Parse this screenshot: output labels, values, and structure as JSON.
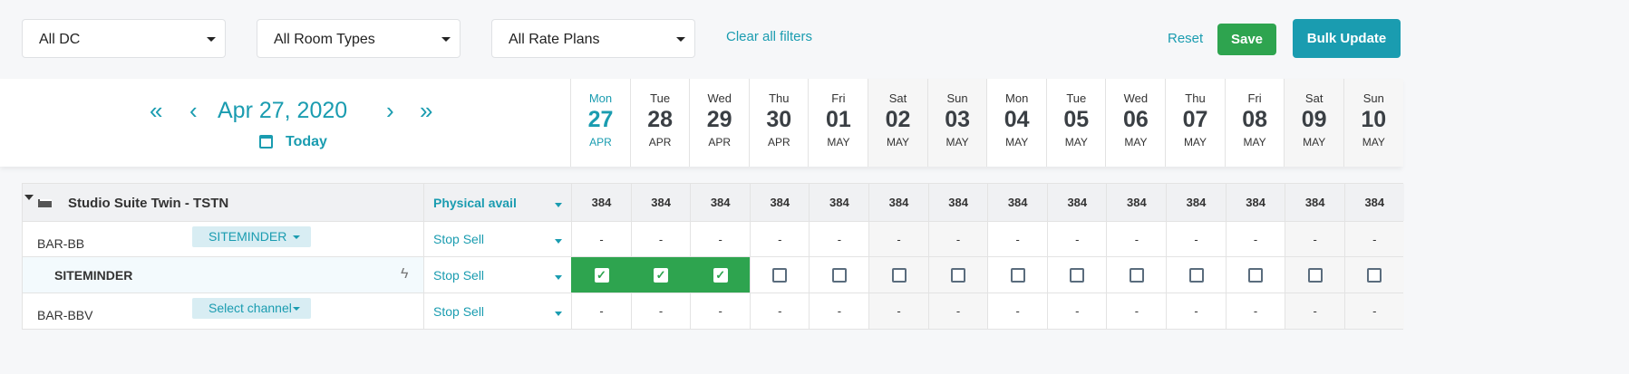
{
  "filters": {
    "dc": "All DC",
    "room_types": "All Room Types",
    "rate_plans": "All Rate Plans",
    "clear": "Clear all filters"
  },
  "actions": {
    "reset": "Reset",
    "save": "Save",
    "bulk_update": "Bulk Update"
  },
  "colors": {
    "accent": "#1a9cb0",
    "save": "#2ea44f",
    "bulk": "#1a9cb0",
    "checked": "#2ea44f"
  },
  "date_nav": {
    "date": "Apr 27, 2020",
    "today": "Today",
    "first": "«",
    "prev": "‹",
    "next": "›",
    "last": "»"
  },
  "days": [
    {
      "name": "Mon",
      "day": "27",
      "month": "APR",
      "today": true
    },
    {
      "name": "Tue",
      "day": "28",
      "month": "APR"
    },
    {
      "name": "Wed",
      "day": "29",
      "month": "APR"
    },
    {
      "name": "Thu",
      "day": "30",
      "month": "APR"
    },
    {
      "name": "Fri",
      "day": "01",
      "month": "MAY"
    },
    {
      "name": "Sat",
      "day": "02",
      "month": "MAY",
      "weekend": true
    },
    {
      "name": "Sun",
      "day": "03",
      "month": "MAY",
      "weekend": true
    },
    {
      "name": "Mon",
      "day": "04",
      "month": "MAY"
    },
    {
      "name": "Tue",
      "day": "05",
      "month": "MAY"
    },
    {
      "name": "Wed",
      "day": "06",
      "month": "MAY"
    },
    {
      "name": "Thu",
      "day": "07",
      "month": "MAY"
    },
    {
      "name": "Fri",
      "day": "08",
      "month": "MAY"
    },
    {
      "name": "Sat",
      "day": "09",
      "month": "MAY",
      "weekend": true
    },
    {
      "name": "Sun",
      "day": "10",
      "month": "MAY",
      "weekend": true
    }
  ],
  "room": {
    "name": "Studio Suite Twin - TSTN",
    "field": "Physical avail",
    "values": [
      "384",
      "384",
      "384",
      "384",
      "384",
      "384",
      "384",
      "384",
      "384",
      "384",
      "384",
      "384",
      "384",
      "384"
    ]
  },
  "rows": [
    {
      "name": "BAR-BB",
      "channel": "SITEMINDER",
      "field": "Stop Sell",
      "type": "text",
      "values": [
        "-",
        "-",
        "-",
        "-",
        "-",
        "-",
        "-",
        "-",
        "-",
        "-",
        "-",
        "-",
        "-",
        "-"
      ]
    },
    {
      "name": "SITEMINDER",
      "field": "Stop Sell",
      "type": "check",
      "checked": [
        true,
        true,
        true,
        false,
        false,
        false,
        false,
        false,
        false,
        false,
        false,
        false,
        false,
        false
      ]
    },
    {
      "name": "BAR-BBV",
      "channel": "Select channel",
      "field": "Stop Sell",
      "type": "text",
      "values": [
        "-",
        "-",
        "-",
        "-",
        "-",
        "-",
        "-",
        "-",
        "-",
        "-",
        "-",
        "-",
        "-",
        "-"
      ]
    }
  ]
}
